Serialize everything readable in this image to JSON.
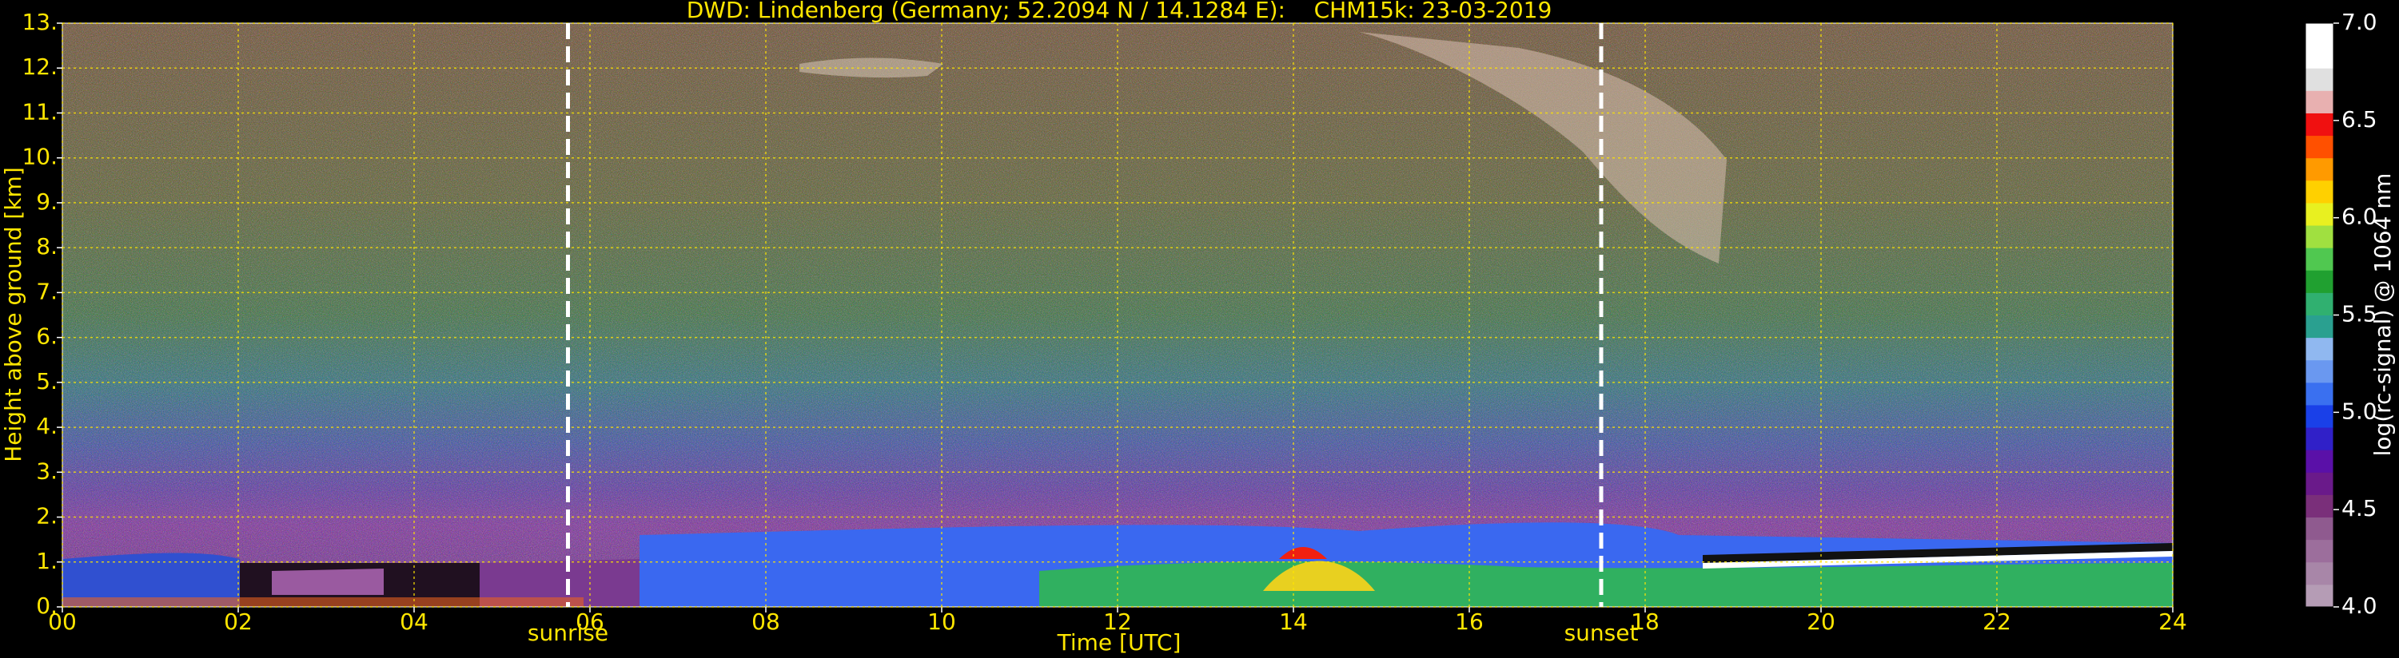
{
  "chart_data": {
    "type": "heatmap",
    "title": "DWD: Lindenberg (Germany; 52.2094 N / 14.1284 E):    CHM15k: 23-03-2019",
    "xlabel": "Time [UTC]",
    "ylabel": "Height above ground [km]",
    "xlim": [
      0,
      24
    ],
    "xticks": [
      {
        "value": 0,
        "label": "00"
      },
      {
        "value": 2,
        "label": "02"
      },
      {
        "value": 4,
        "label": "04"
      },
      {
        "value": 6,
        "label": "06"
      },
      {
        "value": 8,
        "label": "08"
      },
      {
        "value": 10,
        "label": "10"
      },
      {
        "value": 12,
        "label": "12"
      },
      {
        "value": 14,
        "label": "14"
      },
      {
        "value": 16,
        "label": "16"
      },
      {
        "value": 18,
        "label": "18"
      },
      {
        "value": 20,
        "label": "20"
      },
      {
        "value": 22,
        "label": "22"
      },
      {
        "value": 24,
        "label": "24"
      }
    ],
    "ylim": [
      0,
      13
    ],
    "yticks": [
      {
        "value": 0,
        "label": "0."
      },
      {
        "value": 1,
        "label": "1."
      },
      {
        "value": 2,
        "label": "2."
      },
      {
        "value": 3,
        "label": "3."
      },
      {
        "value": 4,
        "label": "4."
      },
      {
        "value": 5,
        "label": "5."
      },
      {
        "value": 6,
        "label": "6."
      },
      {
        "value": 7,
        "label": "7."
      },
      {
        "value": 8,
        "label": "8."
      },
      {
        "value": 9,
        "label": "9."
      },
      {
        "value": 10,
        "label": "10."
      },
      {
        "value": 11,
        "label": "11."
      },
      {
        "value": 12,
        "label": "12."
      },
      {
        "value": 13,
        "label": "13."
      }
    ],
    "grid": true,
    "annotations": [
      {
        "text": "sunrise",
        "x": 5.75
      },
      {
        "text": "sunset",
        "x": 17.5
      }
    ],
    "colorbar": {
      "label": "log(rc-signal) @ 1064 nm",
      "clim": [
        4,
        7
      ],
      "ticks": [
        {
          "value": 4,
          "label": "4.0"
        },
        {
          "value": 4.5,
          "label": "4.5"
        },
        {
          "value": 5,
          "label": "5.0"
        },
        {
          "value": 5.5,
          "label": "5.5"
        },
        {
          "value": 6,
          "label": "6.0"
        },
        {
          "value": 6.5,
          "label": "6.5"
        },
        {
          "value": 7,
          "label": "7.0"
        }
      ],
      "colormap": [
        "#b59cb5",
        "#a886a8",
        "#9c6e9c",
        "#8f5a8f",
        "#7a2f7a",
        "#6a1a8a",
        "#5a10a8",
        "#3020c8",
        "#1a40e8",
        "#3a70f0",
        "#6a98f0",
        "#90b8f0",
        "#2aa090",
        "#30b070",
        "#20a030",
        "#50c850",
        "#a0e040",
        "#e8f020",
        "#ffd000",
        "#ff9a00",
        "#ff5000",
        "#f01010",
        "#e8b0b0",
        "#e0e0e0",
        "#ffffff",
        "#ffffff"
      ]
    }
  }
}
